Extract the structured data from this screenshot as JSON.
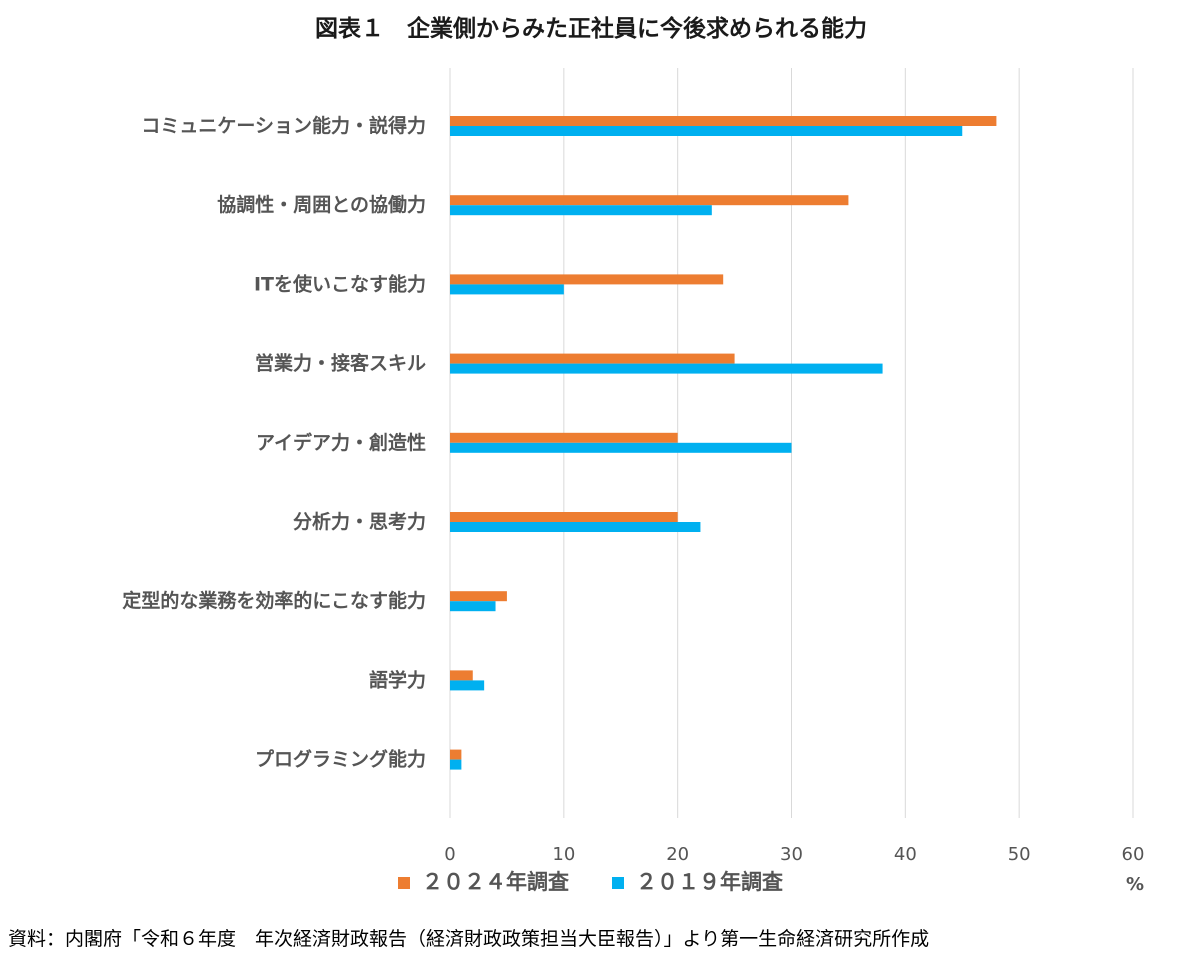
{
  "chart_data": {
    "type": "bar",
    "orientation": "horizontal",
    "title": "図表１　企業側からみた正社員に今後求められる能力",
    "categories": [
      "コミュニケーション能力・説得力",
      "協調性・周囲との協働力",
      "ITを使いこなす能力",
      "営業力・接客スキル",
      "アイデア力・創造性",
      "分析力・思考力",
      "定型的な業務を効率的にこなす能力",
      "語学力",
      "プログラミング能力"
    ],
    "series": [
      {
        "name": "２０２４年調査",
        "color": "#ED7D31",
        "values": [
          48,
          35,
          24,
          25,
          20,
          20,
          5,
          2,
          1
        ]
      },
      {
        "name": "２０１９年調査",
        "color": "#00B0F0",
        "values": [
          45,
          23,
          10,
          38,
          30,
          22,
          4,
          3,
          1
        ]
      }
    ],
    "xlim": [
      0,
      60
    ],
    "xticks": [
      0,
      10,
      20,
      30,
      40,
      50,
      60
    ],
    "xunit": "%",
    "grid": true,
    "legend_position": "bottom"
  },
  "source": "資料：内閣府「令和６年度　年次経済財政報告（経済財政政策担当大臣報告）」より第一生命経済研究所作成"
}
